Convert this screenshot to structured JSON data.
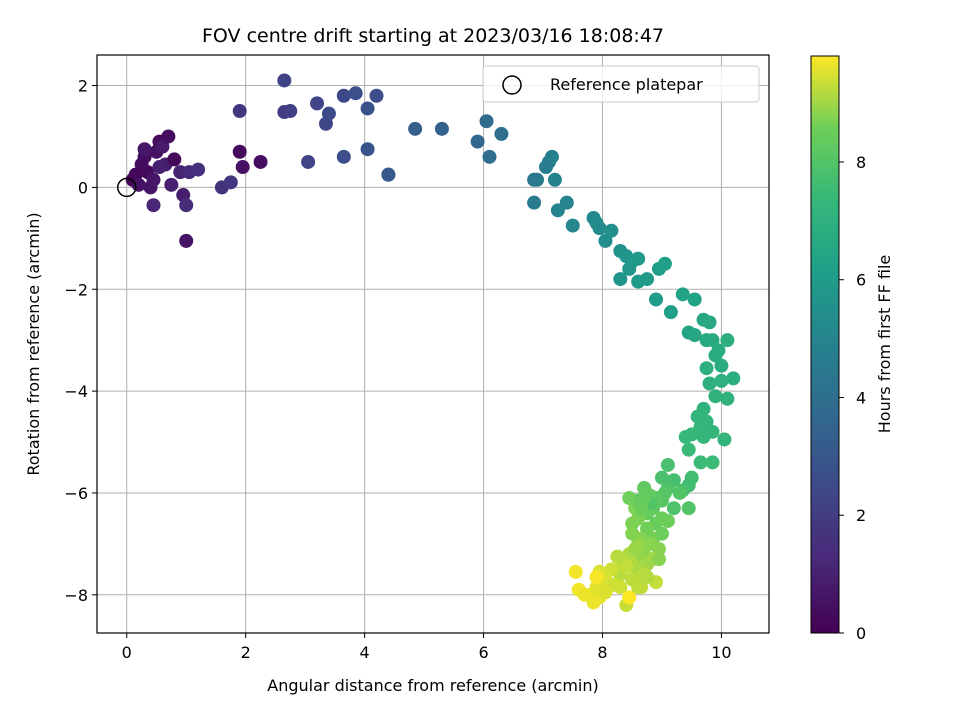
{
  "chart_data": {
    "type": "scatter",
    "title": "FOV centre drift starting at 2023/03/16 18:08:47",
    "xlabel": "Angular distance from reference (arcmin)",
    "ylabel": "Rotation from reference (arcmin)",
    "xlim": [
      -0.5,
      10.8
    ],
    "ylim": [
      -8.75,
      2.6
    ],
    "xticks": [
      0,
      2,
      4,
      6,
      8,
      10
    ],
    "yticks": [
      2,
      0,
      -2,
      -4,
      -6,
      -8
    ],
    "xtick_labels": [
      "0",
      "2",
      "4",
      "6",
      "8",
      "10"
    ],
    "ytick_labels": [
      "2",
      "0",
      "−2",
      "−4",
      "−6",
      "−8"
    ],
    "grid": true,
    "legend": {
      "position": "top-right",
      "entries": [
        "Reference platepar"
      ]
    },
    "colorbar": {
      "label": "Hours from first FF file",
      "range": [
        0,
        9.8
      ],
      "ticks": [
        0,
        2,
        4,
        6,
        8
      ],
      "tick_labels": [
        "0",
        "2",
        "4",
        "6",
        "8"
      ],
      "colormap": "viridis"
    },
    "reference_point": {
      "x": 0,
      "y": 0
    },
    "points": [
      [
        0.1,
        0.15,
        0.1
      ],
      [
        0.15,
        0.25,
        0.2
      ],
      [
        0.25,
        0.45,
        0.3
      ],
      [
        0.3,
        0.6,
        0.4
      ],
      [
        0.2,
        0.05,
        0.5
      ],
      [
        0.35,
        0.3,
        0.35
      ],
      [
        0.4,
        0.0,
        0.6
      ],
      [
        0.45,
        0.15,
        0.7
      ],
      [
        0.5,
        0.7,
        0.5
      ],
      [
        0.55,
        0.9,
        0.3
      ],
      [
        0.6,
        0.8,
        0.8
      ],
      [
        0.7,
        1.0,
        0.4
      ],
      [
        0.65,
        0.45,
        0.9
      ],
      [
        0.8,
        0.55,
        0.2
      ],
      [
        0.75,
        0.05,
        1.0
      ],
      [
        0.45,
        -0.35,
        1.2
      ],
      [
        0.9,
        0.3,
        1.1
      ],
      [
        0.95,
        -0.15,
        0.9
      ],
      [
        1.0,
        -0.35,
        1.4
      ],
      [
        1.05,
        0.3,
        1.3
      ],
      [
        1.2,
        0.35,
        1.5
      ],
      [
        1.0,
        -1.05,
        0.6
      ],
      [
        0.3,
        0.75,
        0.7
      ],
      [
        0.55,
        0.4,
        1.0
      ],
      [
        1.9,
        0.7,
        0.3
      ],
      [
        1.95,
        0.4,
        0.5
      ],
      [
        2.25,
        0.5,
        0.4
      ],
      [
        1.6,
        0.0,
        1.6
      ],
      [
        1.75,
        0.1,
        1.7
      ],
      [
        1.9,
        1.5,
        1.8
      ],
      [
        2.65,
        1.48,
        2.0
      ],
      [
        2.75,
        1.5,
        2.1
      ],
      [
        2.65,
        2.1,
        2.2
      ],
      [
        3.05,
        0.5,
        2.3
      ],
      [
        3.2,
        1.65,
        2.3
      ],
      [
        3.35,
        1.25,
        2.4
      ],
      [
        3.4,
        1.45,
        2.5
      ],
      [
        3.65,
        1.8,
        2.4
      ],
      [
        3.65,
        0.6,
        2.6
      ],
      [
        3.85,
        1.85,
        2.7
      ],
      [
        4.05,
        1.55,
        2.8
      ],
      [
        4.05,
        0.75,
        2.9
      ],
      [
        4.2,
        1.8,
        2.6
      ],
      [
        4.4,
        0.25,
        3.0
      ],
      [
        4.4,
        0.25,
        3.1
      ],
      [
        4.85,
        1.15,
        3.3
      ],
      [
        5.3,
        1.15,
        3.4
      ],
      [
        5.9,
        0.9,
        3.7
      ],
      [
        6.05,
        1.3,
        3.8
      ],
      [
        6.1,
        0.6,
        3.9
      ],
      [
        6.3,
        1.05,
        4.0
      ],
      [
        6.85,
        0.15,
        4.4
      ],
      [
        6.9,
        0.15,
        4.5
      ],
      [
        6.85,
        -0.3,
        4.6
      ],
      [
        7.05,
        0.4,
        4.7
      ],
      [
        7.1,
        0.5,
        4.6
      ],
      [
        7.15,
        0.6,
        4.8
      ],
      [
        7.2,
        0.15,
        4.9
      ],
      [
        7.25,
        -0.45,
        5.0
      ],
      [
        7.4,
        -0.3,
        5.0
      ],
      [
        7.5,
        -0.75,
        5.1
      ],
      [
        7.85,
        -0.6,
        5.2
      ],
      [
        7.9,
        -0.7,
        5.3
      ],
      [
        7.95,
        -0.8,
        5.3
      ],
      [
        8.05,
        -1.05,
        5.4
      ],
      [
        8.15,
        -0.85,
        5.5
      ],
      [
        8.3,
        -1.25,
        5.6
      ],
      [
        8.3,
        -1.8,
        5.7
      ],
      [
        8.4,
        -1.35,
        5.7
      ],
      [
        8.45,
        -1.6,
        5.8
      ],
      [
        8.5,
        -1.45,
        5.8
      ],
      [
        8.6,
        -1.4,
        5.9
      ],
      [
        8.6,
        -1.85,
        6.0
      ],
      [
        8.75,
        -1.8,
        6.0
      ],
      [
        8.9,
        -2.2,
        6.1
      ],
      [
        8.95,
        -1.6,
        6.1
      ],
      [
        9.05,
        -1.5,
        6.2
      ],
      [
        9.15,
        -2.45,
        6.2
      ],
      [
        9.35,
        -2.1,
        6.3
      ],
      [
        9.55,
        -2.2,
        6.3
      ],
      [
        9.45,
        -2.85,
        6.4
      ],
      [
        9.55,
        -2.9,
        6.5
      ],
      [
        9.7,
        -2.6,
        6.5
      ],
      [
        9.8,
        -2.65,
        6.6
      ],
      [
        9.75,
        -3.0,
        6.6
      ],
      [
        9.85,
        -3.0,
        6.7
      ],
      [
        9.9,
        -3.3,
        6.7
      ],
      [
        9.95,
        -3.2,
        6.8
      ],
      [
        10.0,
        -3.5,
        6.8
      ],
      [
        10.1,
        -3.0,
        6.9
      ],
      [
        10.2,
        -3.75,
        6.9
      ],
      [
        9.75,
        -3.55,
        6.95
      ],
      [
        9.8,
        -3.85,
        7.0
      ],
      [
        10.0,
        -3.8,
        7.0
      ],
      [
        10.1,
        -4.15,
        7.1
      ],
      [
        9.9,
        -4.1,
        7.1
      ],
      [
        9.7,
        -4.35,
        7.1
      ],
      [
        9.6,
        -4.5,
        7.2
      ],
      [
        9.75,
        -4.6,
        7.2
      ],
      [
        9.85,
        -4.8,
        7.3
      ],
      [
        9.65,
        -4.7,
        7.3
      ],
      [
        9.7,
        -4.9,
        7.3
      ],
      [
        9.5,
        -4.85,
        7.4
      ],
      [
        9.4,
        -4.9,
        7.4
      ],
      [
        9.45,
        -5.15,
        7.45
      ],
      [
        9.65,
        -5.4,
        7.5
      ],
      [
        9.85,
        -5.4,
        7.5
      ],
      [
        10.05,
        -4.95,
        7.2
      ],
      [
        9.5,
        -5.7,
        7.6
      ],
      [
        9.45,
        -5.85,
        7.6
      ],
      [
        9.35,
        -5.95,
        7.7
      ],
      [
        9.2,
        -5.75,
        7.7
      ],
      [
        9.1,
        -5.45,
        7.8
      ],
      [
        9.0,
        -5.7,
        7.8
      ],
      [
        9.1,
        -5.9,
        7.9
      ],
      [
        9.2,
        -6.3,
        7.9
      ],
      [
        9.45,
        -6.3,
        8.0
      ],
      [
        9.3,
        -6.0,
        8.0
      ],
      [
        9.05,
        -6.0,
        8.1
      ],
      [
        9.0,
        -6.15,
        8.1
      ],
      [
        8.9,
        -6.1,
        8.2
      ],
      [
        8.85,
        -6.3,
        8.2
      ],
      [
        8.8,
        -6.05,
        8.3
      ],
      [
        8.7,
        -5.9,
        8.3
      ],
      [
        8.75,
        -6.4,
        8.4
      ],
      [
        8.9,
        -6.6,
        8.4
      ],
      [
        9.0,
        -6.5,
        8.5
      ],
      [
        9.0,
        -6.8,
        8.5
      ],
      [
        8.85,
        -6.9,
        8.6
      ],
      [
        8.75,
        -6.7,
        8.6
      ],
      [
        8.6,
        -6.5,
        8.65
      ],
      [
        8.55,
        -6.3,
        8.7
      ],
      [
        8.5,
        -6.6,
        8.7
      ],
      [
        8.65,
        -6.9,
        8.75
      ],
      [
        8.8,
        -7.0,
        8.8
      ],
      [
        8.95,
        -7.1,
        8.8
      ],
      [
        8.7,
        -7.2,
        8.85
      ],
      [
        8.6,
        -7.0,
        8.9
      ],
      [
        8.55,
        -7.25,
        8.9
      ],
      [
        8.75,
        -7.4,
        9.0
      ],
      [
        8.85,
        -7.3,
        9.0
      ],
      [
        8.65,
        -7.5,
        9.05
      ],
      [
        8.6,
        -7.6,
        9.1
      ],
      [
        8.5,
        -7.4,
        9.1
      ],
      [
        8.45,
        -7.2,
        9.15
      ],
      [
        8.35,
        -7.4,
        9.2
      ],
      [
        8.3,
        -7.6,
        9.2
      ],
      [
        8.5,
        -7.7,
        9.25
      ],
      [
        8.65,
        -7.85,
        9.3
      ],
      [
        8.9,
        -7.75,
        9.3
      ],
      [
        8.4,
        -8.2,
        9.35
      ],
      [
        8.3,
        -7.85,
        9.4
      ],
      [
        8.15,
        -7.5,
        9.4
      ],
      [
        8.1,
        -7.85,
        9.45
      ],
      [
        8.05,
        -7.7,
        9.5
      ],
      [
        7.95,
        -7.55,
        9.5
      ],
      [
        7.9,
        -7.85,
        9.55
      ],
      [
        7.95,
        -8.05,
        9.6
      ],
      [
        7.8,
        -8.0,
        9.6
      ],
      [
        7.85,
        -8.15,
        9.65
      ],
      [
        7.6,
        -7.9,
        9.7
      ],
      [
        7.55,
        -7.55,
        9.7
      ],
      [
        7.9,
        -7.65,
        9.75
      ],
      [
        8.45,
        -8.05,
        9.8
      ],
      [
        8.25,
        -7.25,
        9.2
      ],
      [
        8.55,
        -7.1,
        8.95
      ],
      [
        8.8,
        -6.2,
        8.0
      ],
      [
        8.6,
        -6.15,
        8.2
      ],
      [
        9.1,
        -6.55,
        8.5
      ],
      [
        8.45,
        -6.1,
        8.55
      ],
      [
        8.7,
        -6.1,
        8.35
      ],
      [
        8.95,
        -7.3,
        8.8
      ],
      [
        8.5,
        -6.8,
        8.75
      ],
      [
        8.65,
        -6.3,
        8.45
      ],
      [
        8.55,
        -7.45,
        9.1
      ],
      [
        8.75,
        -7.65,
        9.15
      ],
      [
        8.6,
        -7.85,
        9.25
      ],
      [
        8.7,
        -7.6,
        9.2
      ],
      [
        8.4,
        -7.45,
        9.3
      ],
      [
        8.2,
        -7.8,
        9.4
      ],
      [
        8.05,
        -7.95,
        9.5
      ],
      [
        7.7,
        -8.0,
        9.65
      ]
    ]
  }
}
